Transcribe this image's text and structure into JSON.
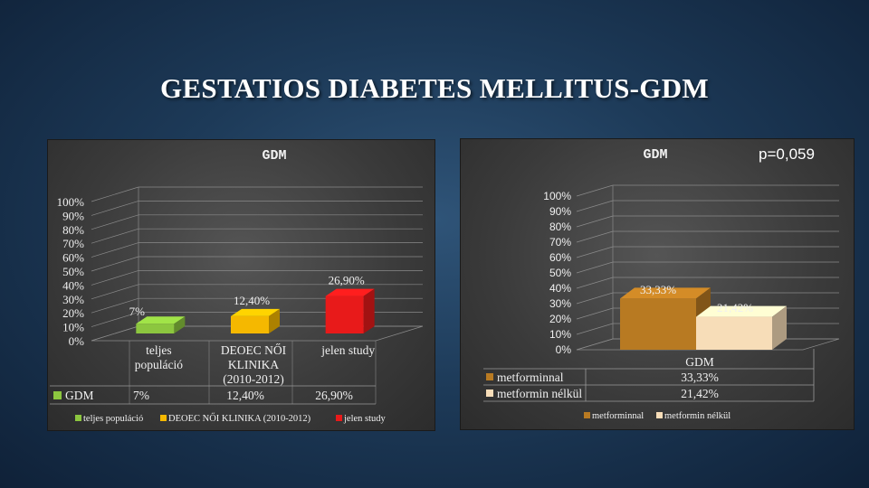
{
  "slide": {
    "title": "GESTATIOS DIABETES MELLITUS-GDM"
  },
  "left_chart": {
    "title": "GDM",
    "y_ticks": [
      "0%",
      "10%",
      "20%",
      "30%",
      "40%",
      "50%",
      "60%",
      "70%",
      "80%",
      "90%",
      "100%"
    ],
    "category_labels": [
      [
        "teljes",
        "populáció"
      ],
      [
        "DEOEC NŐI",
        "KLINIKA",
        "(2010-2012)"
      ],
      [
        "jelen study"
      ]
    ],
    "data_labels": [
      "7%",
      "12,40%",
      "26,90%"
    ],
    "table": {
      "series_name": "GDM",
      "cells": [
        "7%",
        "12,40%",
        "26,90%"
      ]
    },
    "legend": [
      "teljes populáció",
      "DEOEC NŐI KLINIKA (2010-2012)",
      "jelen study"
    ]
  },
  "right_chart": {
    "title": "GDM",
    "p_value": "p=0,059",
    "y_ticks": [
      "0%",
      "10%",
      "20%",
      "30%",
      "40%",
      "50%",
      "60%",
      "70%",
      "80%",
      "90%",
      "100%"
    ],
    "category_label": "GDM",
    "data_labels": [
      "33,33%",
      "21,42%"
    ],
    "table": [
      {
        "series": "metforminnal",
        "value": "33,33%"
      },
      {
        "series": "metformin nélkül",
        "value": "21,42%"
      }
    ],
    "legend": [
      "metforminnal",
      "metformin nélkül"
    ]
  },
  "chart_data": [
    {
      "type": "bar",
      "title": "GDM",
      "categories": [
        "teljes populáció",
        "DEOEC NŐI KLINIKA (2010-2012)",
        "jelen study"
      ],
      "series": [
        {
          "name": "GDM",
          "values": [
            7,
            12.4,
            26.9
          ]
        }
      ],
      "ylim": [
        0,
        100
      ],
      "y_unit": "%",
      "grid": true,
      "legend": "bottom",
      "colors": [
        "#8cc63f",
        "#f5b800",
        "#e81a1a"
      ]
    },
    {
      "type": "bar",
      "title": "GDM",
      "categories": [
        "GDM"
      ],
      "series": [
        {
          "name": "metforminnal",
          "values": [
            33.33
          ]
        },
        {
          "name": "metformin nélkül",
          "values": [
            21.42
          ]
        }
      ],
      "ylim": [
        0,
        100
      ],
      "y_unit": "%",
      "grid": true,
      "legend": "bottom",
      "colors": [
        "#b87a22",
        "#f7ddb8"
      ]
    }
  ]
}
